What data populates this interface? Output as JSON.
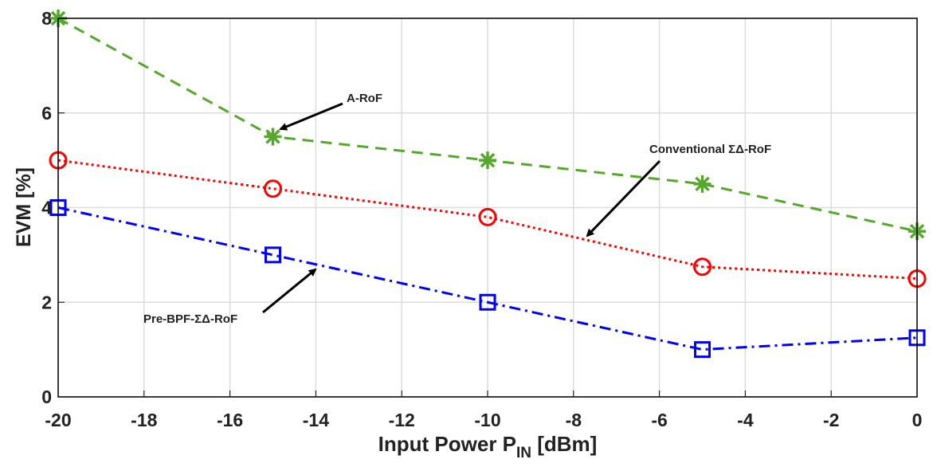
{
  "chart_data": {
    "type": "line",
    "xlabel": [
      "Input Power P",
      "IN",
      " [dBm]"
    ],
    "ylabel": "EVM [%]",
    "xlim": [
      -20,
      0
    ],
    "xticks": [
      -20,
      -18,
      -16,
      -14,
      -12,
      -10,
      -8,
      -6,
      -4,
      -2,
      0
    ],
    "ylim": [
      0,
      8
    ],
    "yticks": [
      0,
      2,
      4,
      6,
      8
    ],
    "grid": true,
    "x": [
      -20,
      -15,
      -10,
      -5,
      0
    ],
    "series": [
      {
        "name": "A-RoF",
        "color": "#56a82c",
        "marker": "asterisk",
        "dash": "dashed",
        "values": [
          8,
          5.5,
          5,
          4.5,
          3.5
        ]
      },
      {
        "name": "Conventional ΣΔ-RoF",
        "color": "#ff0000",
        "marker": "circle",
        "dash": "dotted",
        "values": [
          5,
          4.4,
          3.8,
          2.75,
          2.5
        ]
      },
      {
        "name": "Pre-BPF-ΣΔ-RoF",
        "color": "#0000ff",
        "marker": "square",
        "dash": "dashdot",
        "values": [
          4,
          3,
          2,
          1,
          1.25
        ]
      }
    ]
  }
}
